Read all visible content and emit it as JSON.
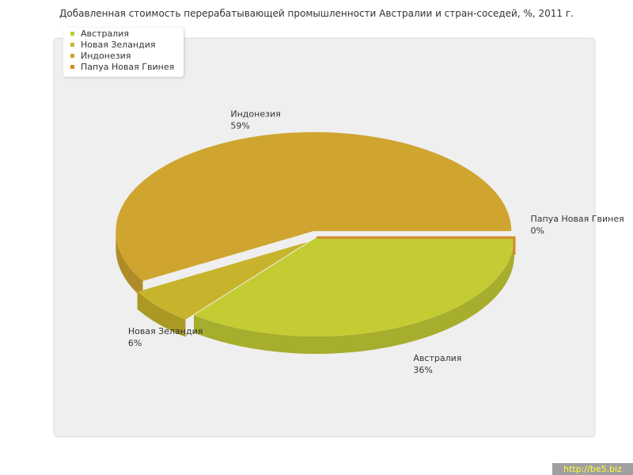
{
  "chart_data": {
    "type": "pie",
    "title": "Добавленная стоимость перерабатывающей промышленности Австралии и стран-соседей, %, 2011 г.",
    "categories": [
      "Австралия",
      "Новая Зеландия",
      "Индонезия",
      "Папуа Новая Гвинея"
    ],
    "values": [
      36,
      6,
      59,
      0
    ],
    "value_labels": [
      "36%",
      "6%",
      "59%",
      "0%"
    ],
    "colors": [
      "#c4cc34",
      "#c8b42c",
      "#cfa52f",
      "#d4892a"
    ],
    "exploded": [
      false,
      true,
      true,
      false
    ],
    "legend": "top-left"
  },
  "watermark": "http://be5.biz"
}
